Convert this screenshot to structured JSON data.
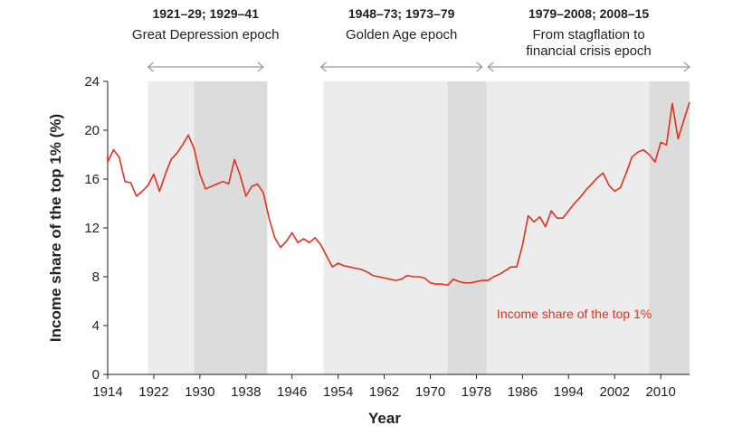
{
  "chart_data": {
    "type": "line",
    "title": "",
    "xlabel": "Year",
    "ylabel": "Income share of the top 1% (%)",
    "xlim": [
      1914,
      2015
    ],
    "ylim": [
      0,
      24
    ],
    "x_ticks": [
      1914,
      1922,
      1930,
      1938,
      1946,
      1954,
      1962,
      1970,
      1978,
      1986,
      1994,
      2002,
      2010
    ],
    "y_ticks": [
      0,
      4,
      8,
      12,
      16,
      20,
      24
    ],
    "grid": false,
    "colors": {
      "line": "#e0301e",
      "band_light": "#ececec",
      "band_dark": "#dcdcdc",
      "arrow": "#9a9a9a"
    },
    "epochs": [
      {
        "heading": "1921–29; 1929–41",
        "label_lines": [
          "Great Depression epoch"
        ],
        "arrow_range": [
          1921,
          1941
        ],
        "bands": [
          {
            "from": 1921,
            "to": 1929,
            "shade": "light"
          },
          {
            "from": 1929,
            "to": 1941.7,
            "shade": "dark"
          }
        ]
      },
      {
        "heading": "1948–73; 1973–79",
        "label_lines": [
          "Golden Age epoch"
        ],
        "arrow_range": [
          1951,
          1979
        ],
        "bands": [
          {
            "from": 1951.5,
            "to": 1973,
            "shade": "light"
          },
          {
            "from": 1973,
            "to": 1979.8,
            "shade": "dark"
          }
        ]
      },
      {
        "heading": "1979–2008; 2008–15",
        "label_lines": [
          "From stagflation to",
          "financial crisis epoch"
        ],
        "arrow_range": [
          1980,
          2015
        ],
        "bands": [
          {
            "from": 1979.8,
            "to": 2008,
            "shade": "light"
          },
          {
            "from": 2008,
            "to": 2015,
            "shade": "dark"
          }
        ]
      }
    ],
    "series": [
      {
        "name": "Income share of the top 1%",
        "x": [
          1913,
          1914,
          1915,
          1916,
          1917,
          1918,
          1919,
          1920,
          1921,
          1922,
          1923,
          1924,
          1925,
          1926,
          1927,
          1928,
          1929,
          1930,
          1931,
          1932,
          1933,
          1934,
          1935,
          1936,
          1937,
          1938,
          1939,
          1940,
          1941,
          1942,
          1943,
          1944,
          1945,
          1946,
          1947,
          1948,
          1949,
          1950,
          1951,
          1952,
          1953,
          1954,
          1955,
          1956,
          1957,
          1958,
          1959,
          1960,
          1961,
          1962,
          1963,
          1964,
          1965,
          1966,
          1967,
          1968,
          1969,
          1970,
          1971,
          1972,
          1973,
          1974,
          1975,
          1976,
          1977,
          1978,
          1979,
          1980,
          1981,
          1982,
          1983,
          1984,
          1985,
          1986,
          1987,
          1988,
          1989,
          1990,
          1991,
          1992,
          1993,
          1994,
          1995,
          1996,
          1997,
          1998,
          1999,
          2000,
          2001,
          2002,
          2003,
          2004,
          2005,
          2006,
          2007,
          2008,
          2009,
          2010,
          2011,
          2012,
          2013,
          2014,
          2015
        ],
        "values": [
          18.0,
          17.4,
          18.4,
          17.8,
          15.8,
          15.7,
          14.6,
          15.0,
          15.5,
          16.4,
          15.0,
          16.4,
          17.6,
          18.1,
          18.8,
          19.6,
          18.5,
          16.4,
          15.2,
          15.4,
          15.6,
          15.8,
          15.6,
          17.6,
          16.3,
          14.6,
          15.4,
          15.6,
          14.9,
          12.8,
          11.2,
          10.4,
          10.9,
          11.6,
          10.8,
          11.1,
          10.8,
          11.2,
          10.6,
          9.7,
          8.8,
          9.1,
          8.9,
          8.8,
          8.7,
          8.6,
          8.4,
          8.1,
          8.0,
          7.9,
          7.8,
          7.7,
          7.8,
          8.1,
          8.0,
          8.0,
          7.9,
          7.5,
          7.4,
          7.4,
          7.3,
          7.8,
          7.6,
          7.5,
          7.5,
          7.6,
          7.7,
          7.7,
          8.0,
          8.2,
          8.5,
          8.8,
          8.8,
          10.6,
          13.0,
          12.5,
          12.9,
          12.1,
          13.4,
          12.8,
          12.8,
          13.4,
          14.0,
          14.5,
          15.1,
          15.6,
          16.1,
          16.5,
          15.5,
          15.0,
          15.3,
          16.5,
          17.8,
          18.2,
          18.4,
          18.0,
          17.4,
          19.0,
          18.8,
          22.2,
          19.3,
          20.8,
          22.3
        ]
      }
    ]
  }
}
